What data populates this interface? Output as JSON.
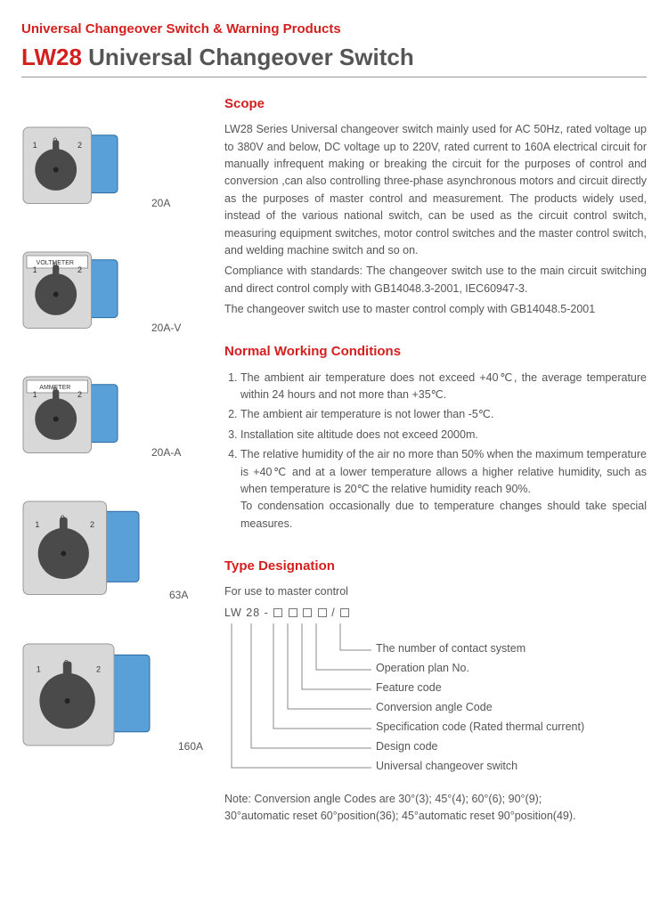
{
  "header": {
    "category": "Universal Changeover Switch & Warning Products",
    "model": "LW28",
    "title_rest": "Universal Changeover Switch"
  },
  "products": [
    {
      "label": "20A",
      "size": 90,
      "plate_label": "",
      "body_color": "#5aa0d8"
    },
    {
      "label": "20A-V",
      "size": 90,
      "plate_label": "VOLTMETER",
      "body_color": "#5aa0d8"
    },
    {
      "label": "20A-A",
      "size": 90,
      "plate_label": "AMMETER",
      "body_color": "#5aa0d8"
    },
    {
      "label": "63A",
      "size": 110,
      "plate_label": "",
      "body_color": "#5aa0d8"
    },
    {
      "label": "160A",
      "size": 120,
      "plate_label": "",
      "body_color": "#5aa0d8"
    }
  ],
  "scope": {
    "heading": "Scope",
    "p1": "LW28 Series Universal changeover switch mainly used for AC 50Hz, rated voltage up to 380V and below, DC voltage up to 220V, rated current to 160A electrical circuit for manually infrequent making or breaking the circuit for the purposes of control and conversion ,can also controlling three-phase asynchronous motors and circuit directly as the purposes of master control and measurement. The products widely used, instead of the various national switch, can be used as the circuit control switch, measuring equipment switches, motor control switches and the master control switch, and welding machine switch and so on.",
    "p2": "Compliance with standards: The changeover switch use to the main circuit switching and direct control comply with GB14048.3-2001, IEC60947-3.",
    "p3": "The changeover switch use to master control comply with GB14048.5-2001"
  },
  "conditions": {
    "heading": "Normal Working Conditions",
    "items": [
      "The ambient air temperature does not exceed +40℃, the average temperature within 24 hours and not more than +35℃.",
      "The ambient air temperature is not lower than -5℃.",
      "Installation site altitude does not exceed 2000m.",
      "The relative humidity of the air no more than 50% when the maximum temperature is +40℃ and at a lower temperature allows a higher relative humidity, such as when temperature is 20℃ the relative humidity reach 90%."
    ],
    "tail": "To condensation occasionally due to temperature changes should take special measures."
  },
  "type_designation": {
    "heading": "Type Designation",
    "subhead": "For use to master control",
    "code_prefix": "LW  28 -",
    "labels": [
      "The number of contact system",
      "Operation plan No.",
      "Feature code",
      "Conversion angle Code",
      "Specification code (Rated thermal current)",
      "Design code",
      "Universal changeover switch"
    ],
    "note1": "Note: Conversion angle Codes are 30°(3); 45°(4); 60°(6); 90°(9);",
    "note2": "30°automatic reset 60°position(36); 45°automatic reset 90°position(49)."
  },
  "colors": {
    "accent": "#d41f1f",
    "text": "#555555",
    "line": "#888888",
    "switch_face": "#d8d8d8",
    "switch_knob": "#4a4a4a"
  }
}
